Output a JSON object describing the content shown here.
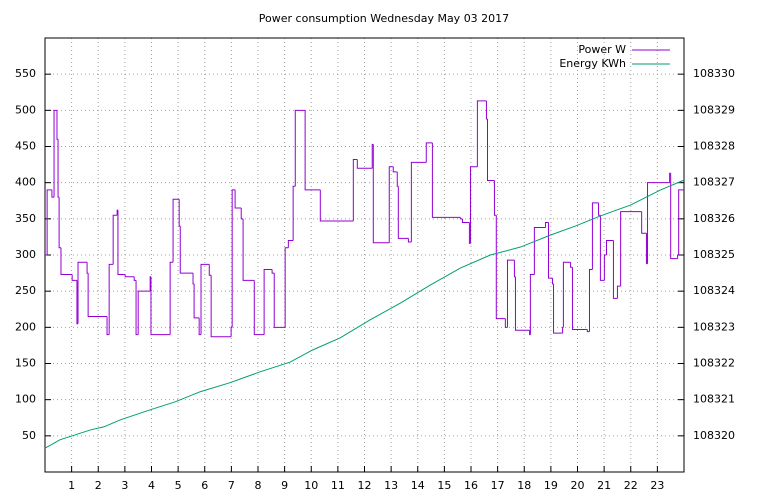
{
  "chart_data": {
    "type": "line",
    "title": "Power consumption Wednesday May 03 2017",
    "xlim": [
      0,
      24
    ],
    "xticks": [
      1,
      2,
      3,
      4,
      5,
      6,
      7,
      8,
      9,
      10,
      11,
      12,
      13,
      14,
      15,
      16,
      17,
      18,
      19,
      20,
      21,
      22,
      23
    ],
    "ylim": [
      0,
      600
    ],
    "yticks": [
      50,
      100,
      150,
      200,
      250,
      300,
      350,
      400,
      450,
      500,
      550
    ],
    "y2lim": [
      108319,
      108331
    ],
    "y2ticks": [
      108320,
      108321,
      108322,
      108323,
      108324,
      108325,
      108326,
      108327,
      108328,
      108329,
      108330
    ],
    "grid": true,
    "legend": "top-right",
    "series": [
      {
        "name": "Power W",
        "color": "#9400d3",
        "step": "post",
        "x": [
          0,
          0.08,
          0.26,
          0.34,
          0.45,
          0.49,
          0.53,
          0.6,
          1.02,
          1.2,
          1.24,
          1.58,
          1.62,
          2.33,
          2.41,
          2.56,
          2.71,
          2.74,
          3.01,
          3.35,
          3.42,
          3.5,
          3.95,
          3.98,
          4.7,
          4.81,
          5.04,
          5.08,
          5.56,
          5.6,
          5.79,
          5.86,
          6.17,
          6.24,
          6.99,
          7.03,
          7.14,
          7.37,
          7.44,
          7.86,
          8.23,
          8.53,
          8.61,
          9.02,
          9.14,
          9.32,
          9.4,
          9.77,
          10.34,
          11.58,
          11.73,
          12.29,
          12.33,
          12.93,
          13.08,
          13.23,
          13.27,
          13.65,
          13.76,
          14.32,
          14.55,
          15.6,
          15.68,
          15.94,
          15.98,
          16.24,
          16.58,
          16.62,
          16.88,
          16.95,
          17.29,
          17.37,
          17.63,
          17.67,
          18.2,
          18.23,
          18.38,
          18.8,
          18.91,
          19.06,
          19.1,
          19.44,
          19.47,
          19.74,
          19.81,
          20.37,
          20.45,
          20.56,
          20.79,
          20.86,
          21.01,
          21.09,
          21.35,
          21.5,
          21.62,
          22.41,
          22.59,
          22.63,
          23.46,
          23.5,
          23.76,
          23.8,
          24
        ],
        "values": [
          300,
          390,
          380,
          500,
          460,
          380,
          310,
          273,
          265,
          205,
          290,
          275,
          215,
          190,
          287,
          355,
          362,
          273,
          270,
          265,
          190,
          250,
          270,
          190,
          290,
          377,
          340,
          275,
          260,
          213,
          190,
          287,
          272,
          187,
          200,
          390,
          365,
          350,
          265,
          190,
          280,
          275,
          200,
          310,
          320,
          395,
          500,
          390,
          347,
          432,
          420,
          453,
          317,
          422,
          415,
          395,
          323,
          318,
          428,
          455,
          352,
          350,
          345,
          316,
          422,
          513,
          488,
          403,
          355,
          212,
          200,
          293,
          270,
          196,
          190,
          273,
          338,
          345,
          268,
          260,
          192,
          200,
          290,
          283,
          197,
          194,
          280,
          372,
          355,
          265,
          300,
          320,
          240,
          257,
          360,
          330,
          288,
          400,
          413,
          295,
          300,
          390,
          390
        ]
      },
      {
        "name": "Energy KWh",
        "color": "#009e73",
        "axis": "y2",
        "x": [
          0,
          0.56,
          1.69,
          2.22,
          2.82,
          3.95,
          4.89,
          5.83,
          6.95,
          8.08,
          9.21,
          10.04,
          11.09,
          12.22,
          13.35,
          14.47,
          15.6,
          16.73,
          17.86,
          18.98,
          19.92,
          20.86,
          21.99,
          23.12,
          24
        ],
        "values": [
          108319.66,
          108319.89,
          108320.16,
          108320.25,
          108320.44,
          108320.72,
          108320.94,
          108321.22,
          108321.47,
          108321.77,
          108322.04,
          108322.37,
          108322.71,
          108323.21,
          108323.67,
          108324.17,
          108324.64,
          108325.0,
          108325.22,
          108325.55,
          108325.8,
          108326.08,
          108326.38,
          108326.8,
          108327.07
        ]
      }
    ]
  }
}
